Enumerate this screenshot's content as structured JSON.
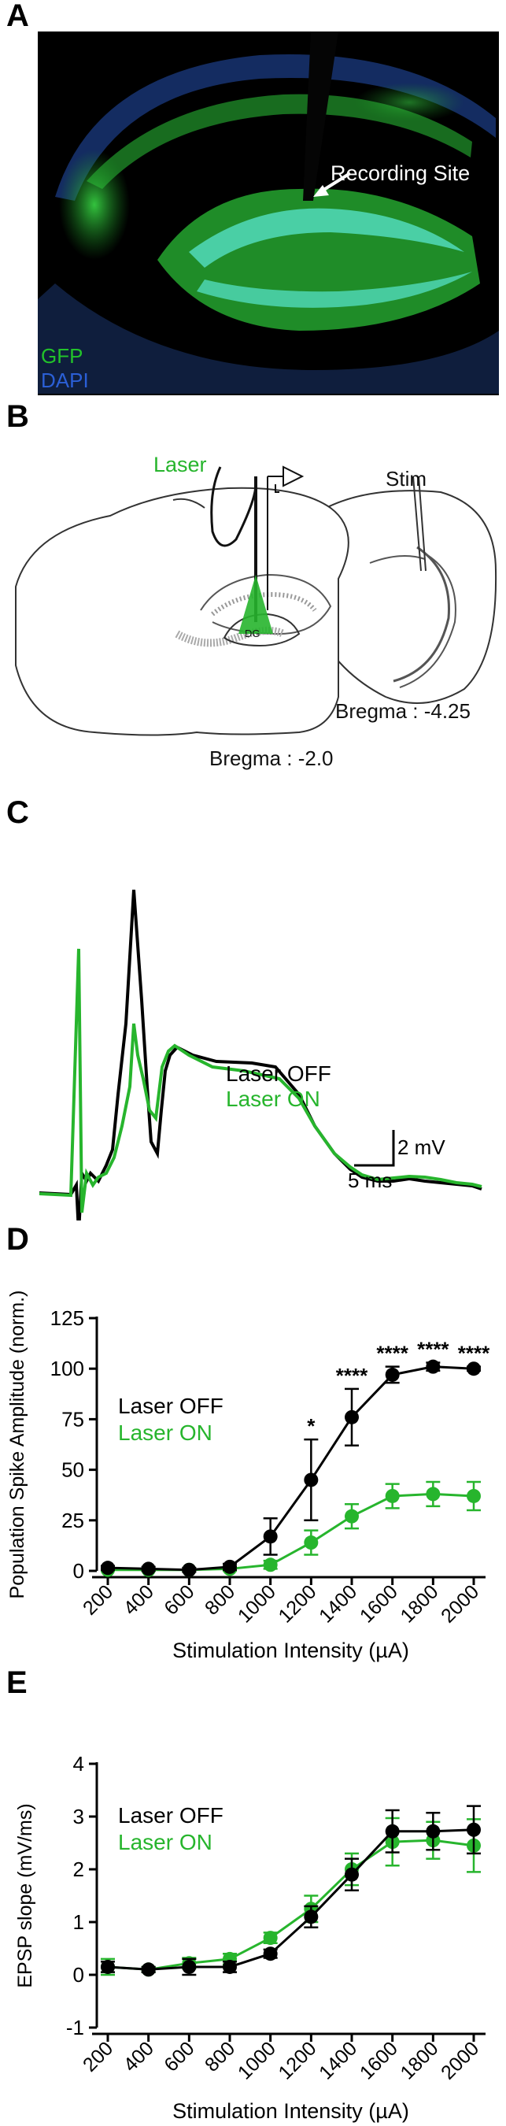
{
  "panels": {
    "a": "A",
    "b": "B",
    "c": "C",
    "d": "D",
    "e": "E"
  },
  "panel_a": {
    "recording_site": "Recording Site",
    "gfp": "GFP",
    "dapi": "DAPI",
    "colors": {
      "gfp": "#22c22a",
      "dapi": "#2b5fd6",
      "background": "#000000"
    }
  },
  "panel_b": {
    "laser": "Laser",
    "stim": "Stim",
    "dg": "DG",
    "bregma_posterior": "Bregma : -4.25",
    "bregma_anterior": "Bregma : -2.0"
  },
  "panel_c": {
    "legend_off": "Laser OFF",
    "legend_on": "Laser ON",
    "scale_v": "2 mV",
    "scale_t": "5 ms"
  },
  "colors": {
    "laser_off": "#000000",
    "laser_on": "#27b52d"
  },
  "chart_data": [
    {
      "type": "line",
      "panel": "D",
      "xlabel": "Stimulation Intensity (µA)",
      "ylabel": "Population Spike Amplitude (norm.)",
      "x": [
        200,
        400,
        600,
        800,
        1000,
        1200,
        1400,
        1600,
        1800,
        2000
      ],
      "xticks": [
        "200",
        "400",
        "600",
        "800",
        "1000",
        "1200",
        "1400",
        "1600",
        "1800",
        "2000"
      ],
      "yticks": [
        "0",
        "25",
        "50",
        "75",
        "100",
        "125"
      ],
      "ylim": [
        0,
        125
      ],
      "series": [
        {
          "name": "Laser OFF",
          "values": [
            1.5,
            1,
            0.5,
            2,
            17,
            45,
            76,
            97,
            101,
            100
          ],
          "errors": [
            1,
            1,
            1,
            1.5,
            9,
            20,
            14,
            4,
            2,
            1
          ]
        },
        {
          "name": "Laser ON",
          "values": [
            0.5,
            0.5,
            0.5,
            1,
            3,
            14,
            27,
            37,
            38,
            37
          ],
          "errors": [
            0.5,
            0.5,
            0.5,
            1,
            2,
            6,
            6,
            6,
            6,
            7
          ]
        }
      ],
      "annotations": [
        {
          "x": 1200,
          "label": "*"
        },
        {
          "x": 1400,
          "label": "****"
        },
        {
          "x": 1600,
          "label": "****"
        },
        {
          "x": 1800,
          "label": "****"
        },
        {
          "x": 2000,
          "label": "****"
        }
      ],
      "legend": "top-left"
    },
    {
      "type": "line",
      "panel": "E",
      "xlabel": "Stimulation Intensity (µA)",
      "ylabel": "EPSP slope (mV/ms)",
      "x": [
        200,
        400,
        600,
        800,
        1000,
        1200,
        1400,
        1600,
        1800,
        2000
      ],
      "xticks": [
        "200",
        "400",
        "600",
        "800",
        "1000",
        "1200",
        "1400",
        "1600",
        "1800",
        "2000"
      ],
      "yticks": [
        "-1",
        "0",
        "1",
        "2",
        "3",
        "4"
      ],
      "ylim": [
        -1,
        4
      ],
      "series": [
        {
          "name": "Laser OFF",
          "values": [
            0.15,
            0.1,
            0.15,
            0.15,
            0.4,
            1.1,
            1.9,
            2.72,
            2.72,
            2.75
          ],
          "errors": [
            0.1,
            0.05,
            0.15,
            0.1,
            0.08,
            0.2,
            0.3,
            0.4,
            0.35,
            0.45
          ]
        },
        {
          "name": "Laser ON",
          "values": [
            0.15,
            0.1,
            0.22,
            0.3,
            0.7,
            1.25,
            2.0,
            2.52,
            2.55,
            2.45
          ],
          "errors": [
            0.15,
            0.05,
            0.1,
            0.1,
            0.1,
            0.25,
            0.3,
            0.45,
            0.35,
            0.5
          ]
        }
      ],
      "legend": "top-left"
    }
  ]
}
